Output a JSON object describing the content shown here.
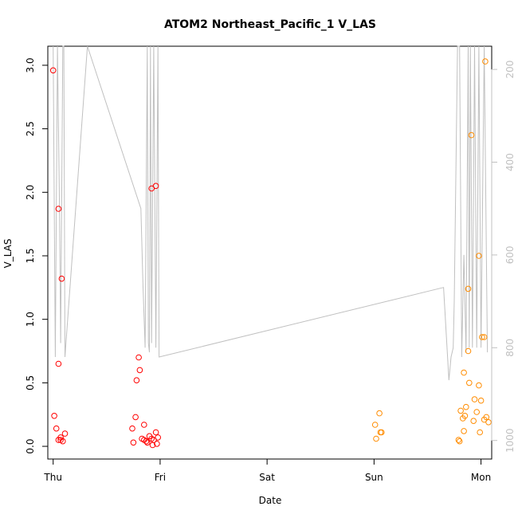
{
  "chart_data": {
    "type": "scatter",
    "title": "ATOM2 Northeast_Pacific_1 V_LAS",
    "xlabel": "Date",
    "ylabel": "V_LAS",
    "x_tick_labels": [
      "Thu",
      "Fri",
      "Sat",
      "Sun",
      "Mon"
    ],
    "xlim": [
      -0.05,
      4.1
    ],
    "ylim": [
      -0.1,
      3.15
    ],
    "y_ticks": [
      0.0,
      0.5,
      1.0,
      1.5,
      2.0,
      2.5,
      3.0
    ],
    "y_tick_labels": [
      "0.0",
      "0.5",
      "1.0",
      "1.5",
      "2.0",
      "2.5",
      "3.0"
    ],
    "y2_axis": {
      "reversed": true,
      "lim": [
        1040,
        150
      ],
      "ticks": [
        200,
        400,
        600,
        800,
        1000
      ],
      "tick_labels": [
        "200",
        "400",
        "600",
        "800",
        "1000"
      ],
      "color": "#c0c0c0"
    },
    "grid": false,
    "series": [
      {
        "color": "#ff0000",
        "marker": "open-circle",
        "points": [
          [
            0.0,
            2.96
          ],
          [
            0.05,
            1.87
          ],
          [
            0.08,
            1.32
          ],
          [
            0.05,
            0.65
          ],
          [
            0.01,
            0.24
          ],
          [
            0.03,
            0.14
          ],
          [
            0.11,
            0.1
          ],
          [
            0.05,
            0.05
          ],
          [
            0.07,
            0.07
          ],
          [
            0.09,
            0.04
          ],
          [
            0.07,
            0.05
          ],
          [
            0.92,
            2.03
          ],
          [
            0.96,
            2.05
          ],
          [
            0.8,
            0.7
          ],
          [
            0.81,
            0.6
          ],
          [
            0.78,
            0.52
          ],
          [
            0.77,
            0.23
          ],
          [
            0.74,
            0.14
          ],
          [
            0.85,
            0.17
          ],
          [
            0.83,
            0.06
          ],
          [
            0.85,
            0.05
          ],
          [
            0.87,
            0.04
          ],
          [
            0.88,
            0.03
          ],
          [
            0.9,
            0.08
          ],
          [
            0.92,
            0.06
          ],
          [
            0.94,
            0.05
          ],
          [
            0.96,
            0.11
          ],
          [
            0.98,
            0.07
          ],
          [
            0.93,
            0.01
          ],
          [
            0.97,
            0.02
          ],
          [
            0.75,
            0.03
          ]
        ]
      },
      {
        "color": "#ff8c00",
        "marker": "open-circle",
        "points": [
          [
            4.04,
            3.03
          ],
          [
            3.91,
            2.45
          ],
          [
            3.98,
            1.5
          ],
          [
            3.88,
            1.24
          ],
          [
            4.01,
            0.86
          ],
          [
            4.03,
            0.86
          ],
          [
            3.88,
            0.75
          ],
          [
            3.84,
            0.58
          ],
          [
            3.89,
            0.5
          ],
          [
            3.98,
            0.48
          ],
          [
            3.94,
            0.37
          ],
          [
            4.0,
            0.36
          ],
          [
            3.86,
            0.31
          ],
          [
            3.81,
            0.28
          ],
          [
            3.96,
            0.27
          ],
          [
            3.85,
            0.24
          ],
          [
            4.05,
            0.23
          ],
          [
            3.83,
            0.22
          ],
          [
            4.03,
            0.21
          ],
          [
            3.93,
            0.2
          ],
          [
            4.07,
            0.19
          ],
          [
            3.84,
            0.12
          ],
          [
            3.99,
            0.11
          ],
          [
            3.79,
            0.05
          ],
          [
            3.8,
            0.04
          ],
          [
            3.05,
            0.26
          ],
          [
            3.01,
            0.17
          ],
          [
            3.06,
            0.11
          ],
          [
            3.07,
            0.11
          ],
          [
            3.02,
            0.06
          ]
        ]
      }
    ],
    "secondary_line": {
      "color": "#c0c0c0",
      "axis": "y2",
      "points": [
        [
          0.0,
          150
        ],
        [
          0.02,
          820
        ],
        [
          0.04,
          150
        ],
        [
          0.06,
          520
        ],
        [
          0.07,
          790
        ],
        [
          0.09,
          150
        ],
        [
          0.1,
          150
        ],
        [
          0.11,
          820
        ],
        [
          0.32,
          150
        ],
        [
          0.82,
          500
        ],
        [
          0.84,
          670
        ],
        [
          0.86,
          800
        ],
        [
          0.88,
          150
        ],
        [
          0.89,
          790
        ],
        [
          0.9,
          810
        ],
        [
          0.91,
          150
        ],
        [
          0.92,
          790
        ],
        [
          0.94,
          150
        ],
        [
          0.96,
          800
        ],
        [
          0.98,
          150
        ],
        [
          0.99,
          820
        ],
        [
          3.65,
          670
        ],
        [
          3.7,
          870
        ],
        [
          3.72,
          820
        ],
        [
          3.74,
          800
        ],
        [
          3.75,
          700
        ],
        [
          3.78,
          150
        ],
        [
          3.8,
          150
        ],
        [
          3.82,
          820
        ],
        [
          3.84,
          600
        ],
        [
          3.86,
          810
        ],
        [
          3.88,
          150
        ],
        [
          3.89,
          800
        ],
        [
          3.9,
          150
        ],
        [
          3.92,
          800
        ],
        [
          3.94,
          150
        ],
        [
          3.96,
          800
        ],
        [
          3.98,
          150
        ],
        [
          4.0,
          800
        ],
        [
          4.03,
          150
        ],
        [
          4.06,
          810
        ]
      ]
    }
  }
}
